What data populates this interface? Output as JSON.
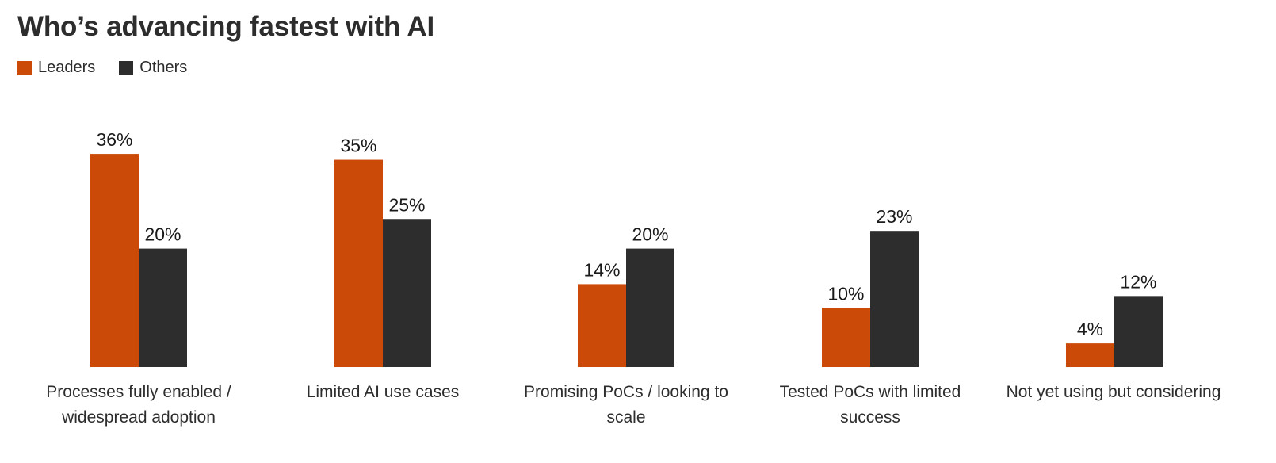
{
  "chart_data": {
    "type": "bar",
    "title": "Who’s advancing fastest with AI",
    "categories": [
      [
        "Processes fully enabled /",
        "widespread adoption"
      ],
      [
        "Limited AI use cases"
      ],
      [
        "Promising PoCs / looking to",
        "scale"
      ],
      [
        "Tested PoCs with limited",
        "success"
      ],
      [
        "Not yet using but considering"
      ]
    ],
    "series": [
      {
        "name": "Leaders",
        "color": "#cc4a07",
        "values": [
          36,
          35,
          14,
          10,
          4
        ]
      },
      {
        "name": "Others",
        "color": "#2d2d2d",
        "values": [
          20,
          25,
          20,
          23,
          12
        ]
      }
    ],
    "value_suffix": "%",
    "ylim": [
      0,
      40
    ],
    "grid": false,
    "legend_position": "top-left"
  }
}
